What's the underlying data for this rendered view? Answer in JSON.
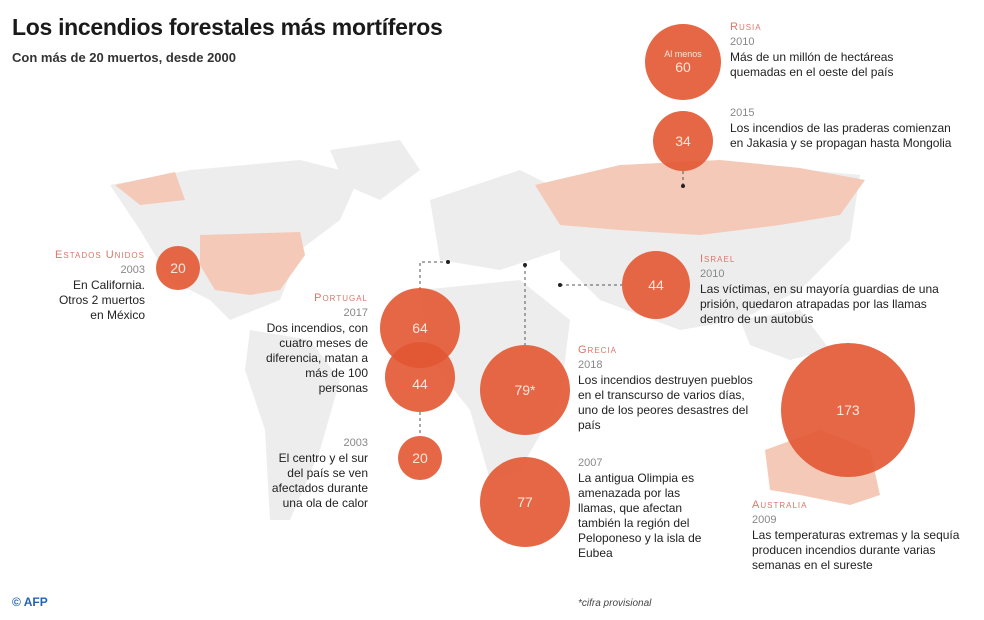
{
  "header": {
    "title": "Los incendios forestales más mortíferos",
    "subtitle": "Con más de 20 muertos, desde 2000"
  },
  "colors": {
    "bubble": "#e25632",
    "highlight_country": "#f4c9b8",
    "land": "#ededed",
    "country_label": "#d9776a"
  },
  "entries": [
    {
      "country": "Rusia",
      "year": "2010",
      "deaths": "60",
      "prefix": "Al menos",
      "text": "Más de un millón de hectáreas quemadas en el oeste del país"
    },
    {
      "year": "2015",
      "deaths": "34",
      "text": "Los incendios de las praderas comienzan en Jakasia y se propagan hasta Mongolia"
    },
    {
      "country": "Estados Unidos",
      "year": "2003",
      "deaths": "20",
      "text": "En California. Otros 2 muertos en México"
    },
    {
      "country": "Portugal",
      "year": "2017",
      "deaths": "64",
      "deaths2": "44",
      "text": "Dos incendios, con cuatro meses de diferencia, matan a más de 100 personas"
    },
    {
      "year": "2003",
      "deaths": "20",
      "text": "El centro y el sur del país se ven afectados durante una ola de calor"
    },
    {
      "country": "Israel",
      "year": "2010",
      "deaths": "44",
      "text": "Las víctimas, en su mayoría guardias de una prisión, quedaron atrapadas por las llamas dentro de un autobús"
    },
    {
      "country": "Grecia",
      "year": "2018",
      "deaths": "79*",
      "text": "Los incendios destruyen pueblos en el transcurso de varios días, uno de los peores desastres del país"
    },
    {
      "year": "2007",
      "deaths": "77",
      "text": "La antigua Olimpia es amenazada por las llamas, que afectan también la región del Peloponeso y la isla de Eubea"
    },
    {
      "country": "Australia",
      "year": "2009",
      "deaths": "173",
      "text": "Las temperaturas extremas y la sequía producen incendios durante varias semanas en el sureste"
    }
  ],
  "footnote": "*cifra provisional",
  "credit": "© AFP"
}
